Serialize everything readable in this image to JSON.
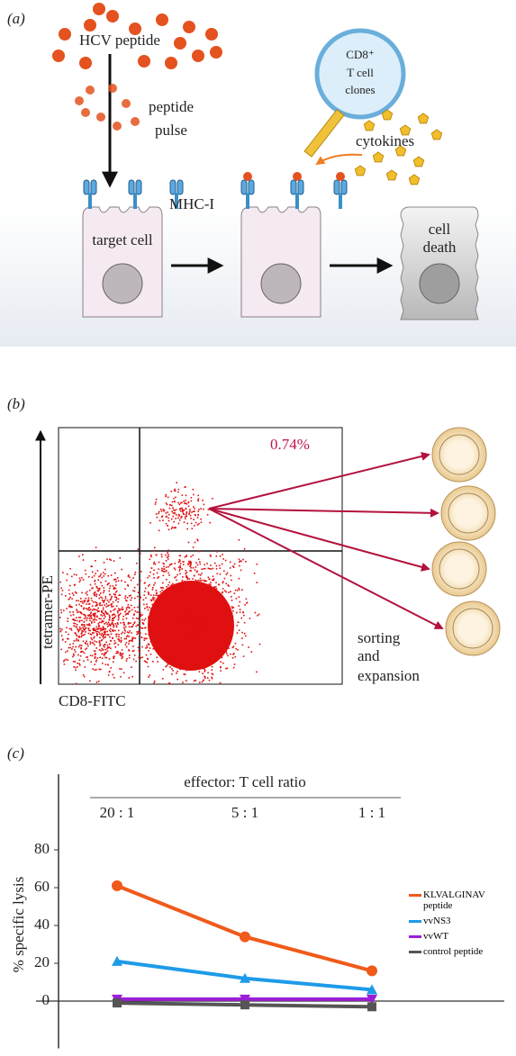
{
  "panel_a": {
    "label": "(a)",
    "peptide": "HCV peptide",
    "pulse": [
      "peptide",
      "pulse"
    ],
    "mhc": "MHC-I",
    "target": "target cell",
    "tcell": [
      "CD8⁺",
      "T cell",
      "clones"
    ],
    "cytokines": "cytokines",
    "death": [
      "cell",
      "death"
    ]
  },
  "panel_b": {
    "label": "(b)",
    "gate_percent": "0.74%",
    "y_label": "tetramer-PE",
    "x_label": "CD8-FITC",
    "sorting": [
      "sorting",
      "and",
      "expansion"
    ]
  },
  "chart_data": {
    "type": "line",
    "label": "(c)",
    "title": "effector: T cell ratio",
    "y_label": "% specific lysis",
    "categories": [
      "20 : 1",
      "5 : 1",
      "1 : 1"
    ],
    "ylim": [
      -25,
      120
    ],
    "yticks": [
      0,
      20,
      40,
      60,
      80
    ],
    "series": [
      {
        "name": "KLVALGINAV peptide",
        "color": "#f05a1a",
        "marker": "circle",
        "values": [
          61,
          34,
          16
        ]
      },
      {
        "name": "vvNS3",
        "color": "#1e9be8",
        "marker": "triangle",
        "values": [
          21,
          12,
          6
        ]
      },
      {
        "name": "vvWT",
        "color": "#9b1fd6",
        "marker": "triangle-down",
        "values": [
          1,
          1,
          1
        ]
      },
      {
        "name": "control peptide",
        "color": "#555555",
        "marker": "square",
        "values": [
          -1,
          -2,
          -3
        ]
      }
    ]
  }
}
